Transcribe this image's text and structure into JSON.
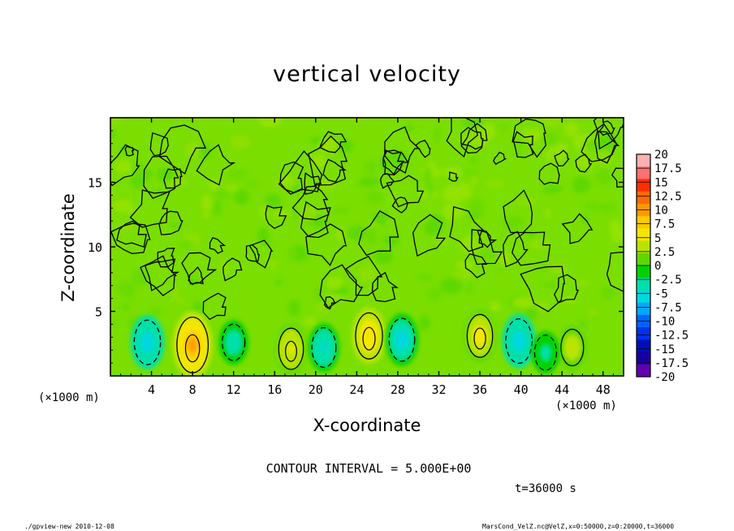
{
  "chart_data": {
    "type": "heatmap",
    "title": "vertical velocity",
    "xlabel": "X-coordinate",
    "ylabel": "Z-coordinate",
    "x_unit_label": "(×1000 m)",
    "xlim": [
      0,
      50
    ],
    "ylim": [
      0,
      20
    ],
    "x_ticks": [
      "4",
      "8",
      "12",
      "16",
      "20",
      "24",
      "28",
      "32",
      "36",
      "40",
      "44",
      "48"
    ],
    "x_tick_values": [
      4,
      8,
      12,
      16,
      20,
      24,
      28,
      32,
      36,
      40,
      44,
      48
    ],
    "y_ticks": [
      "5",
      "10",
      "15"
    ],
    "y_tick_values": [
      5,
      10,
      15
    ],
    "colorbar": {
      "labels": [
        "20",
        "17.5",
        "15",
        "12.5",
        "10",
        "7.5",
        "5",
        "2.5",
        "0",
        "-2.5",
        "-5",
        "-7.5",
        "-10",
        "-12.5",
        "-15",
        "-17.5",
        "-20"
      ],
      "colors": [
        "#ffb0b0",
        "#ff7070",
        "#ff3000",
        "#ff6a00",
        "#ff9800",
        "#ffc800",
        "#f5e600",
        "#b8e400",
        "#5ed800",
        "#00d200",
        "#00e0a8",
        "#00d8e0",
        "#00a8ff",
        "#0064ff",
        "#0030f0",
        "#0010b8",
        "#1800a0",
        "#6000b0"
      ]
    },
    "contour_interval": 5.0,
    "updrafts": [
      {
        "x": 8.0,
        "z": 2.4,
        "w": 9.5
      },
      {
        "x": 17.6,
        "z": 2.1,
        "w": 5.0
      },
      {
        "x": 25.2,
        "z": 3.1,
        "w": 6.5
      },
      {
        "x": 36.0,
        "z": 3.1,
        "w": 5.5
      },
      {
        "x": 45.0,
        "z": 2.2,
        "w": 3.5
      }
    ],
    "downdrafts": [
      {
        "x": 3.6,
        "z": 2.6,
        "w": -6.0
      },
      {
        "x": 12.0,
        "z": 2.6,
        "w": -3.5
      },
      {
        "x": 20.8,
        "z": 2.2,
        "w": -4.5
      },
      {
        "x": 28.4,
        "z": 2.8,
        "w": -5.5
      },
      {
        "x": 39.8,
        "z": 2.7,
        "w": -6.0
      },
      {
        "x": 42.4,
        "z": 1.8,
        "w": -3.0
      }
    ]
  },
  "labels": {
    "contour_note": "CONTOUR INTERVAL = 5.000E+00",
    "time_note": "t=36000 s",
    "footer_left": "./gpview-new  2010-12-08",
    "footer_right": "MarsCond_VelZ.nc@VelZ,x=0:50000,z=0:20000,t=36000"
  }
}
